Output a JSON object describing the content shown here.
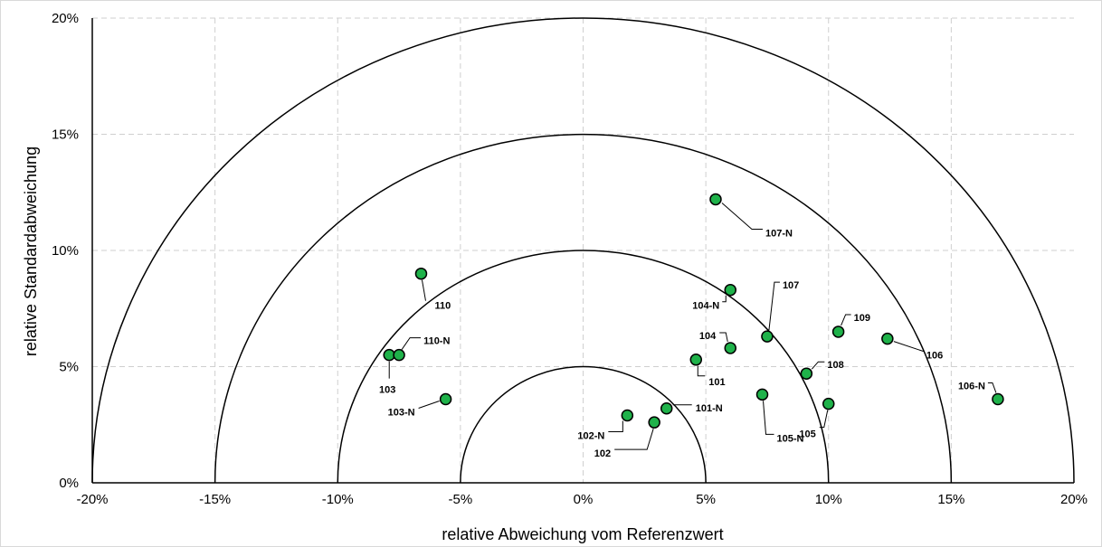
{
  "chart_data": {
    "type": "scatter",
    "title": "",
    "xlabel": "relative Abweichung vom Referenzwert",
    "ylabel": "relative Standardabweichung",
    "xlim": [
      -20,
      20
    ],
    "ylim": [
      0,
      20
    ],
    "x_ticks": [
      "-20%",
      "-15%",
      "-10%",
      "-5%",
      "0%",
      "5%",
      "10%",
      "15%",
      "20%"
    ],
    "y_ticks": [
      "0%",
      "5%",
      "10%",
      "15%",
      "20%"
    ],
    "grid": true,
    "reference_circles_radius": [
      5,
      10,
      15,
      20
    ],
    "marker_color": "#1fb24a",
    "points": [
      {
        "label": "101",
        "x": 4.6,
        "y": 5.3
      },
      {
        "label": "101-N",
        "x": 3.4,
        "y": 3.2
      },
      {
        "label": "102",
        "x": 2.9,
        "y": 2.6
      },
      {
        "label": "102-N",
        "x": 1.8,
        "y": 2.9
      },
      {
        "label": "103",
        "x": -7.9,
        "y": 5.5
      },
      {
        "label": "103-N",
        "x": -5.6,
        "y": 3.6
      },
      {
        "label": "104",
        "x": 6.0,
        "y": 5.8
      },
      {
        "label": "104-N",
        "x": 6.0,
        "y": 8.3
      },
      {
        "label": "105",
        "x": 10.0,
        "y": 3.4
      },
      {
        "label": "105-N",
        "x": 7.3,
        "y": 3.8
      },
      {
        "label": "106",
        "x": 12.4,
        "y": 6.2
      },
      {
        "label": "106-N",
        "x": 16.9,
        "y": 3.6
      },
      {
        "label": "107",
        "x": 7.5,
        "y": 6.3
      },
      {
        "label": "107-N",
        "x": 5.4,
        "y": 12.2
      },
      {
        "label": "108",
        "x": 9.1,
        "y": 4.7
      },
      {
        "label": "109",
        "x": 10.4,
        "y": 6.5
      },
      {
        "label": "110",
        "x": -6.6,
        "y": 9.0
      },
      {
        "label": "110-N",
        "x": -7.5,
        "y": 5.5
      }
    ]
  }
}
